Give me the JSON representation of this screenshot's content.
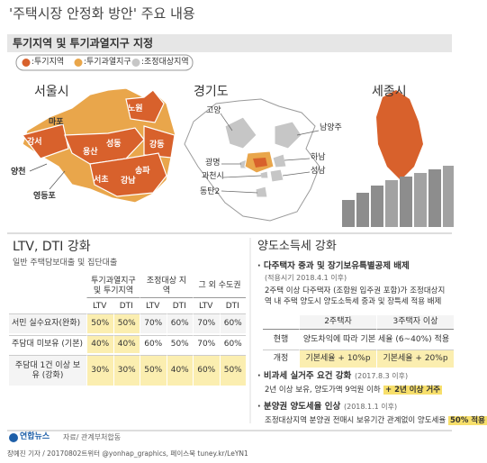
{
  "header": {
    "title": "'주택시장 안정화 방안' 주요 내용"
  },
  "designation": {
    "title": "투기지역 및 투기과열지구 지정",
    "legend": [
      ":투기지역",
      ":투기과열지구",
      ":조정대상지역"
    ],
    "regions": [
      "서울시",
      "경기도",
      "세종시"
    ],
    "seoul_districts": [
      "노원",
      "마포",
      "강서",
      "용산",
      "성동",
      "강동",
      "양천",
      "송파",
      "영등포",
      "서초",
      "강남"
    ],
    "gyeonggi_areas": [
      "고양",
      "남양주",
      "광명",
      "하남",
      "과천시",
      "성남",
      "동탄2"
    ]
  },
  "loan": {
    "title": "LTV, DTI 강화",
    "subtitle": "일반 주택담보대출 및 집단대출",
    "columns": [
      "투기과열지구 및 투기지역",
      "조정대상 지역",
      "그 외 수도권"
    ],
    "subcolumns": [
      "LTV",
      "DTI",
      "LTV",
      "DTI",
      "LTV",
      "DTI"
    ],
    "rows": [
      {
        "label": "서민 실수요자(완화)",
        "cells": [
          "50%",
          "50%",
          "70%",
          "60%",
          "70%",
          "60%"
        ]
      },
      {
        "label": "주담대 미보유 (기본)",
        "cells": [
          "40%",
          "40%",
          "60%",
          "50%",
          "70%",
          "60%"
        ]
      },
      {
        "label": "주담대 1건 이상 보유 (강화)",
        "cells": [
          "30%",
          "30%",
          "50%",
          "40%",
          "60%",
          "50%"
        ]
      }
    ]
  },
  "tax": {
    "title": "양도소득세 강화",
    "items": [
      {
        "heading": "· 다주택자 중과 및 장기보유특별공제 배제",
        "period": "(적용시기 2018.4.1 이후)",
        "text": [
          "2주택 이상 다주택자 (조합원 입주권 포함)가 조정대상지역 내 주택 양도시 양도소득세 중과 및 장특세 적용 배제"
        ]
      },
      {
        "heading": "· 비과세 실거주 요건 강화",
        "period": "(2017.8.3 이후)",
        "text": [
          "2년 이상 보유, 양도가액 9억원 이하",
          "+ 2년 이상 거주"
        ]
      },
      {
        "heading": "· 분양권 양도세율 인상",
        "period": "(2018.1.1 이후)",
        "text": [
          "조정대상지역 분양권 전매시 보유기간 관계없이 양도세율",
          "50% 적용"
        ]
      }
    ],
    "table": {
      "columns": [
        "2주택자",
        "3주택자 이상"
      ],
      "rows": [
        {
          "label": "현행",
          "cells": [
            "양도차익에 따라 기본 세율 (6~40%) 적용"
          ]
        },
        {
          "label": "개정",
          "cells": [
            "기본세율 + 10%p",
            "기본세율 + 20%p"
          ]
        }
      ]
    }
  },
  "footer": {
    "logo": "연합뉴스",
    "source": "자료/ 관계부처합동",
    "credit": "장예진 기자 / 20170802트위터 @yonhap_graphics, 페이스북 tuney.kr/LeYN1"
  }
}
